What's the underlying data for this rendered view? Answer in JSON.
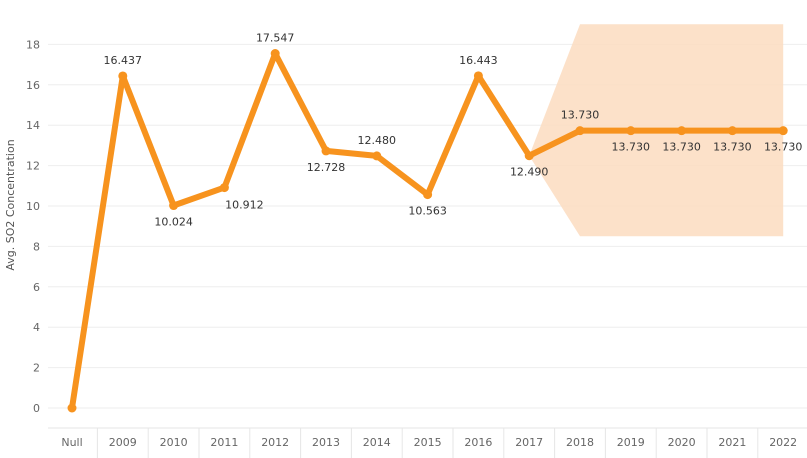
{
  "chart_data": {
    "type": "line",
    "title": "",
    "xlabel": "",
    "ylabel": "Avg. SO2 Concentration",
    "categories": [
      "Null",
      "2009",
      "2010",
      "2011",
      "2012",
      "2013",
      "2014",
      "2015",
      "2016",
      "2017",
      "2018",
      "2019",
      "2020",
      "2021",
      "2022"
    ],
    "series": [
      {
        "values": [
          0,
          16.437,
          10.024,
          10.912,
          17.547,
          12.728,
          12.48,
          10.563,
          16.443,
          12.49,
          13.73,
          13.73,
          13.73,
          13.73,
          13.73
        ],
        "labels": [
          "",
          "16.437",
          "10.024",
          "10.912",
          "17.547",
          "12.728",
          "12.480",
          "10.563",
          "16.443",
          "12.490",
          "13.730",
          "13.730",
          "13.730",
          "13.730",
          "13.730"
        ],
        "label_pos": [
          "",
          "above",
          "below",
          "right",
          "above",
          "below",
          "above",
          "below",
          "above",
          "below",
          "above",
          "below",
          "below",
          "below",
          "below"
        ]
      }
    ],
    "forecast_band": {
      "from_category": "2017",
      "start_value": 12.49,
      "widen_to_category": "2018",
      "lower": 8.5,
      "upper": 19,
      "to_category": "2022"
    },
    "ylim": [
      0,
      19
    ],
    "yticks": [
      0,
      2,
      4,
      6,
      8,
      10,
      12,
      14,
      16,
      18
    ],
    "grid": true,
    "colors": {
      "line": "#f7931e",
      "band": "#fcdcbf"
    }
  }
}
